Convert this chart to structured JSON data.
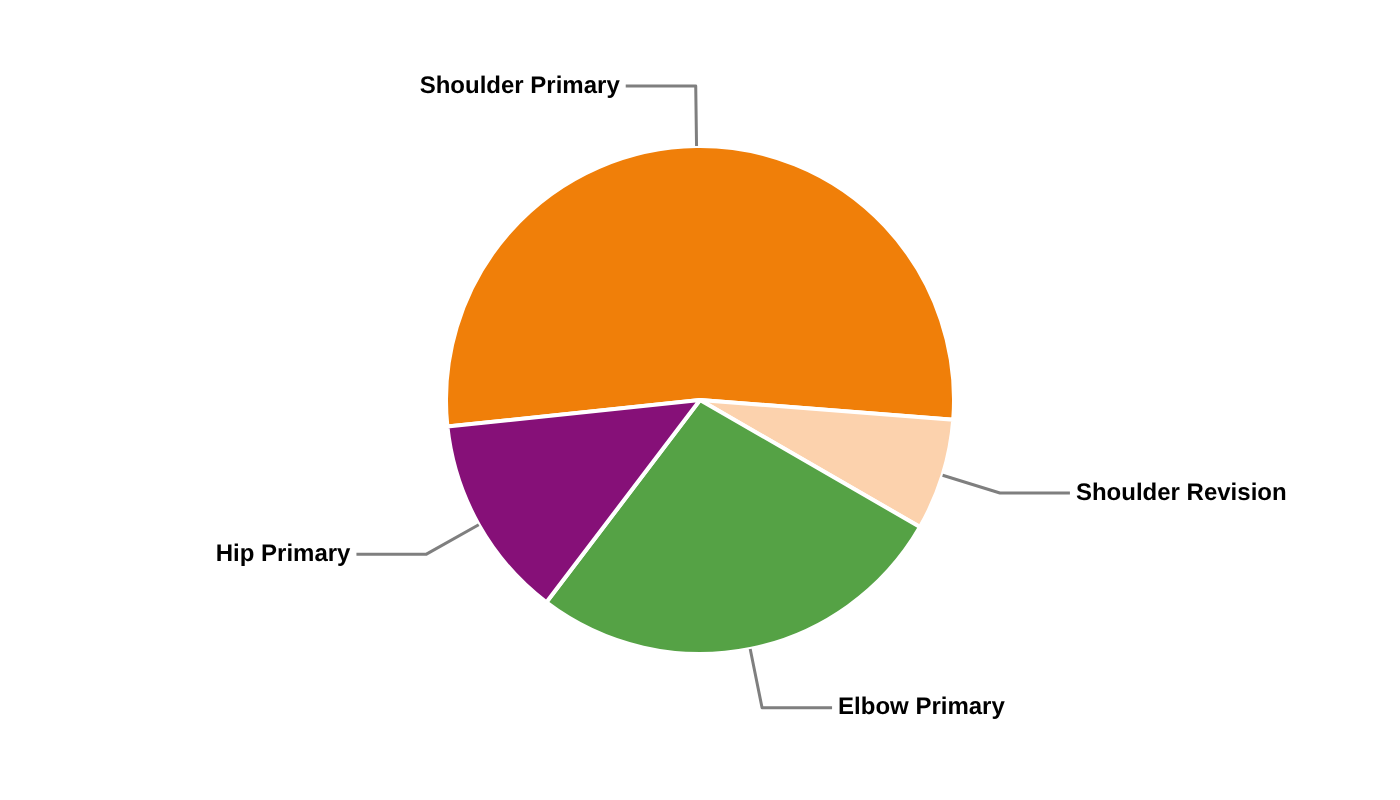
{
  "chart_data": {
    "type": "pie",
    "categories": [
      "Shoulder Primary",
      "Shoulder Revision",
      "Elbow Primary",
      "Hip Primary"
    ],
    "values": [
      52.9,
      7.1,
      27.0,
      13.0
    ],
    "colors": [
      "#f07f09",
      "#fcd2ad",
      "#55a245",
      "#861078"
    ]
  }
}
